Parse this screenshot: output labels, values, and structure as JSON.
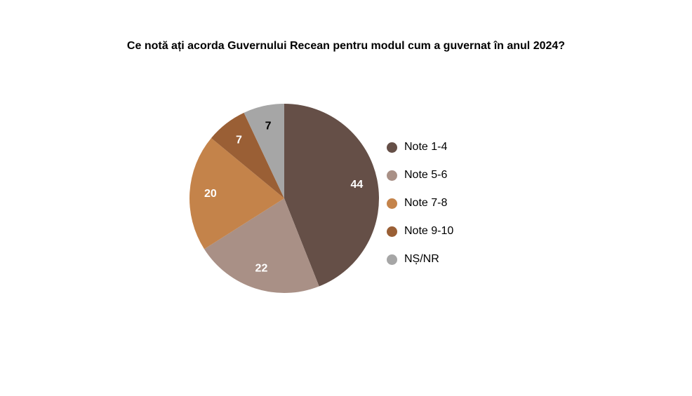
{
  "chart_data": {
    "type": "pie",
    "title": "Ce notă ați acorda Guvernului Recean pentru modul cum a guvernat în anul 2024?",
    "categories": [
      "Note 1-4",
      "Note 5-6",
      "Note 7-8",
      "Note 9-10",
      "NȘ/NR"
    ],
    "values": [
      44,
      22,
      20,
      7,
      7
    ],
    "colors": [
      "#654f47",
      "#a99086",
      "#c4834a",
      "#9a5f35",
      "#a6a6a6"
    ],
    "label_colors": [
      "#ffffff",
      "#ffffff",
      "#ffffff",
      "#ffffff",
      "#000000"
    ],
    "legend_position": "right",
    "start": "top",
    "direction": "clockwise"
  }
}
